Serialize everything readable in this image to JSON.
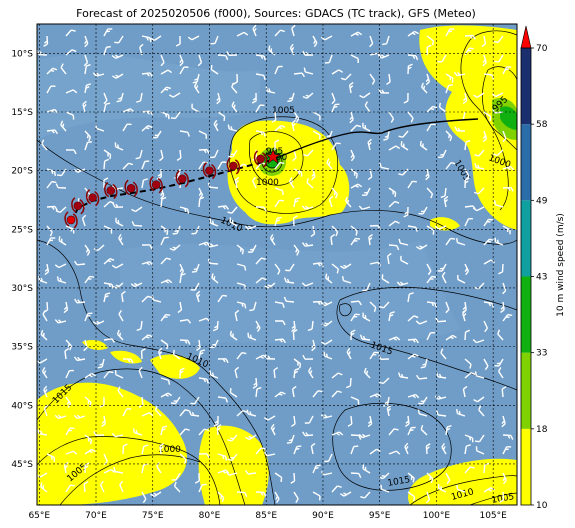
{
  "title": "Forecast of 2025020506 (f000), Sources: GDACS (TC track), GFS (Meteo)",
  "map": {
    "lon_range": [
      64.8,
      107.1
    ],
    "lat_range": [
      -48.5,
      -7.5
    ],
    "lon_ticks": [
      "65°E",
      "70°E",
      "75°E",
      "80°E",
      "85°E",
      "90°E",
      "95°E",
      "100°E",
      "105°E"
    ],
    "lat_ticks": [
      "10°S",
      "15°S",
      "20°S",
      "25°S",
      "30°S",
      "35°S",
      "40°S",
      "45°S"
    ],
    "ocean_color": "#6f9dc8",
    "land_color": "#d9d9d9"
  },
  "colorbar": {
    "label": "10 m wind speed (m/s)",
    "ticks": [
      "10",
      "18",
      "33",
      "43",
      "49",
      "58",
      "70"
    ],
    "colors": [
      "#ffff00",
      "#7fd100",
      "#10b010",
      "#10a0a0",
      "#2a6da8",
      "#1b2e6e"
    ],
    "extend_color": "#ff0000"
  },
  "isobars": [
    {
      "label": "1005"
    },
    {
      "label": "995"
    },
    {
      "label": "990"
    },
    {
      "label": "1000"
    },
    {
      "label": "1010"
    },
    {
      "label": "995"
    },
    {
      "label": "1000"
    },
    {
      "label": "1005"
    },
    {
      "label": "1010"
    },
    {
      "label": "1015"
    },
    {
      "label": "1015"
    },
    {
      "label": "1000"
    },
    {
      "label": "1005"
    },
    {
      "label": "1015"
    },
    {
      "label": "1010"
    },
    {
      "label": "1005"
    }
  ],
  "tc_track": {
    "current": {
      "lon": 85.6,
      "lat": -18.8
    },
    "past": [
      {
        "lon": 84.5,
        "lat": -19.0
      },
      {
        "lon": 82.1,
        "lat": -19.6
      },
      {
        "lon": 80.0,
        "lat": -20.0
      },
      {
        "lon": 77.6,
        "lat": -20.7
      },
      {
        "lon": 75.3,
        "lat": -21.2
      },
      {
        "lon": 73.1,
        "lat": -21.5
      },
      {
        "lon": 71.3,
        "lat": -21.7
      },
      {
        "lon": 69.7,
        "lat": -22.3
      },
      {
        "lon": 68.4,
        "lat": -23.0
      },
      {
        "lon": 67.8,
        "lat": -24.2
      }
    ]
  }
}
